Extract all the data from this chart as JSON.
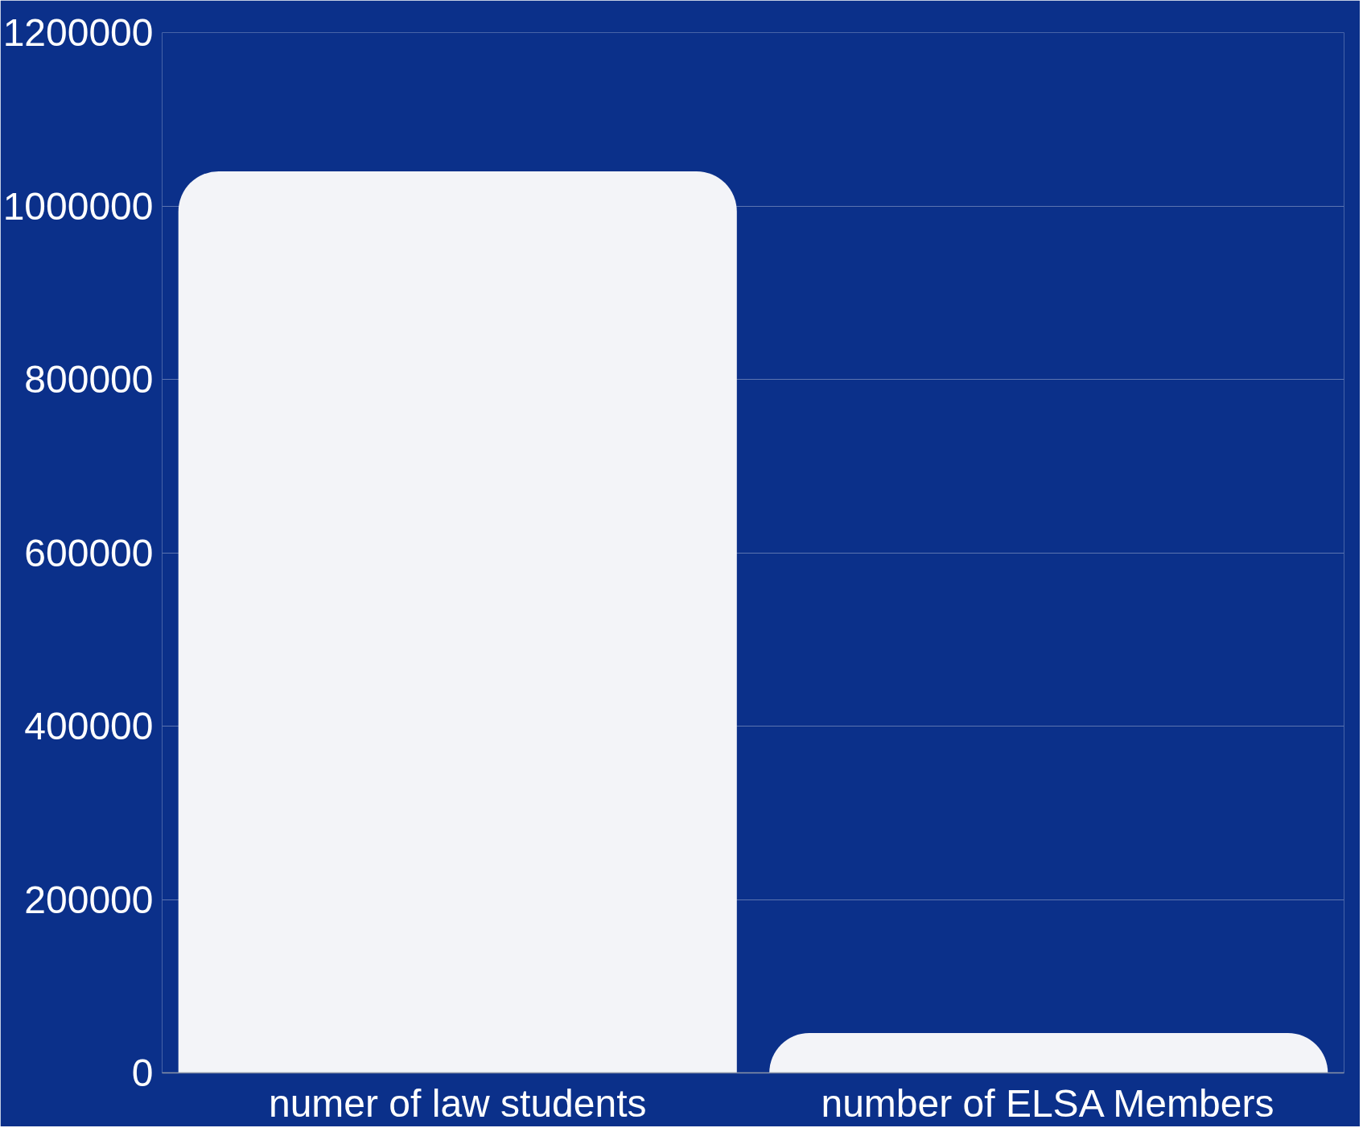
{
  "chart_data": {
    "type": "bar",
    "categories": [
      "numer of law students",
      "number of ELSA Members"
    ],
    "values": [
      1040000,
      46000
    ],
    "color": "#f3f4f8",
    "ylim": [
      0,
      1200000
    ],
    "yticks": [
      0,
      200000,
      400000,
      600000,
      800000,
      1000000,
      1200000
    ],
    "grid": "y"
  }
}
